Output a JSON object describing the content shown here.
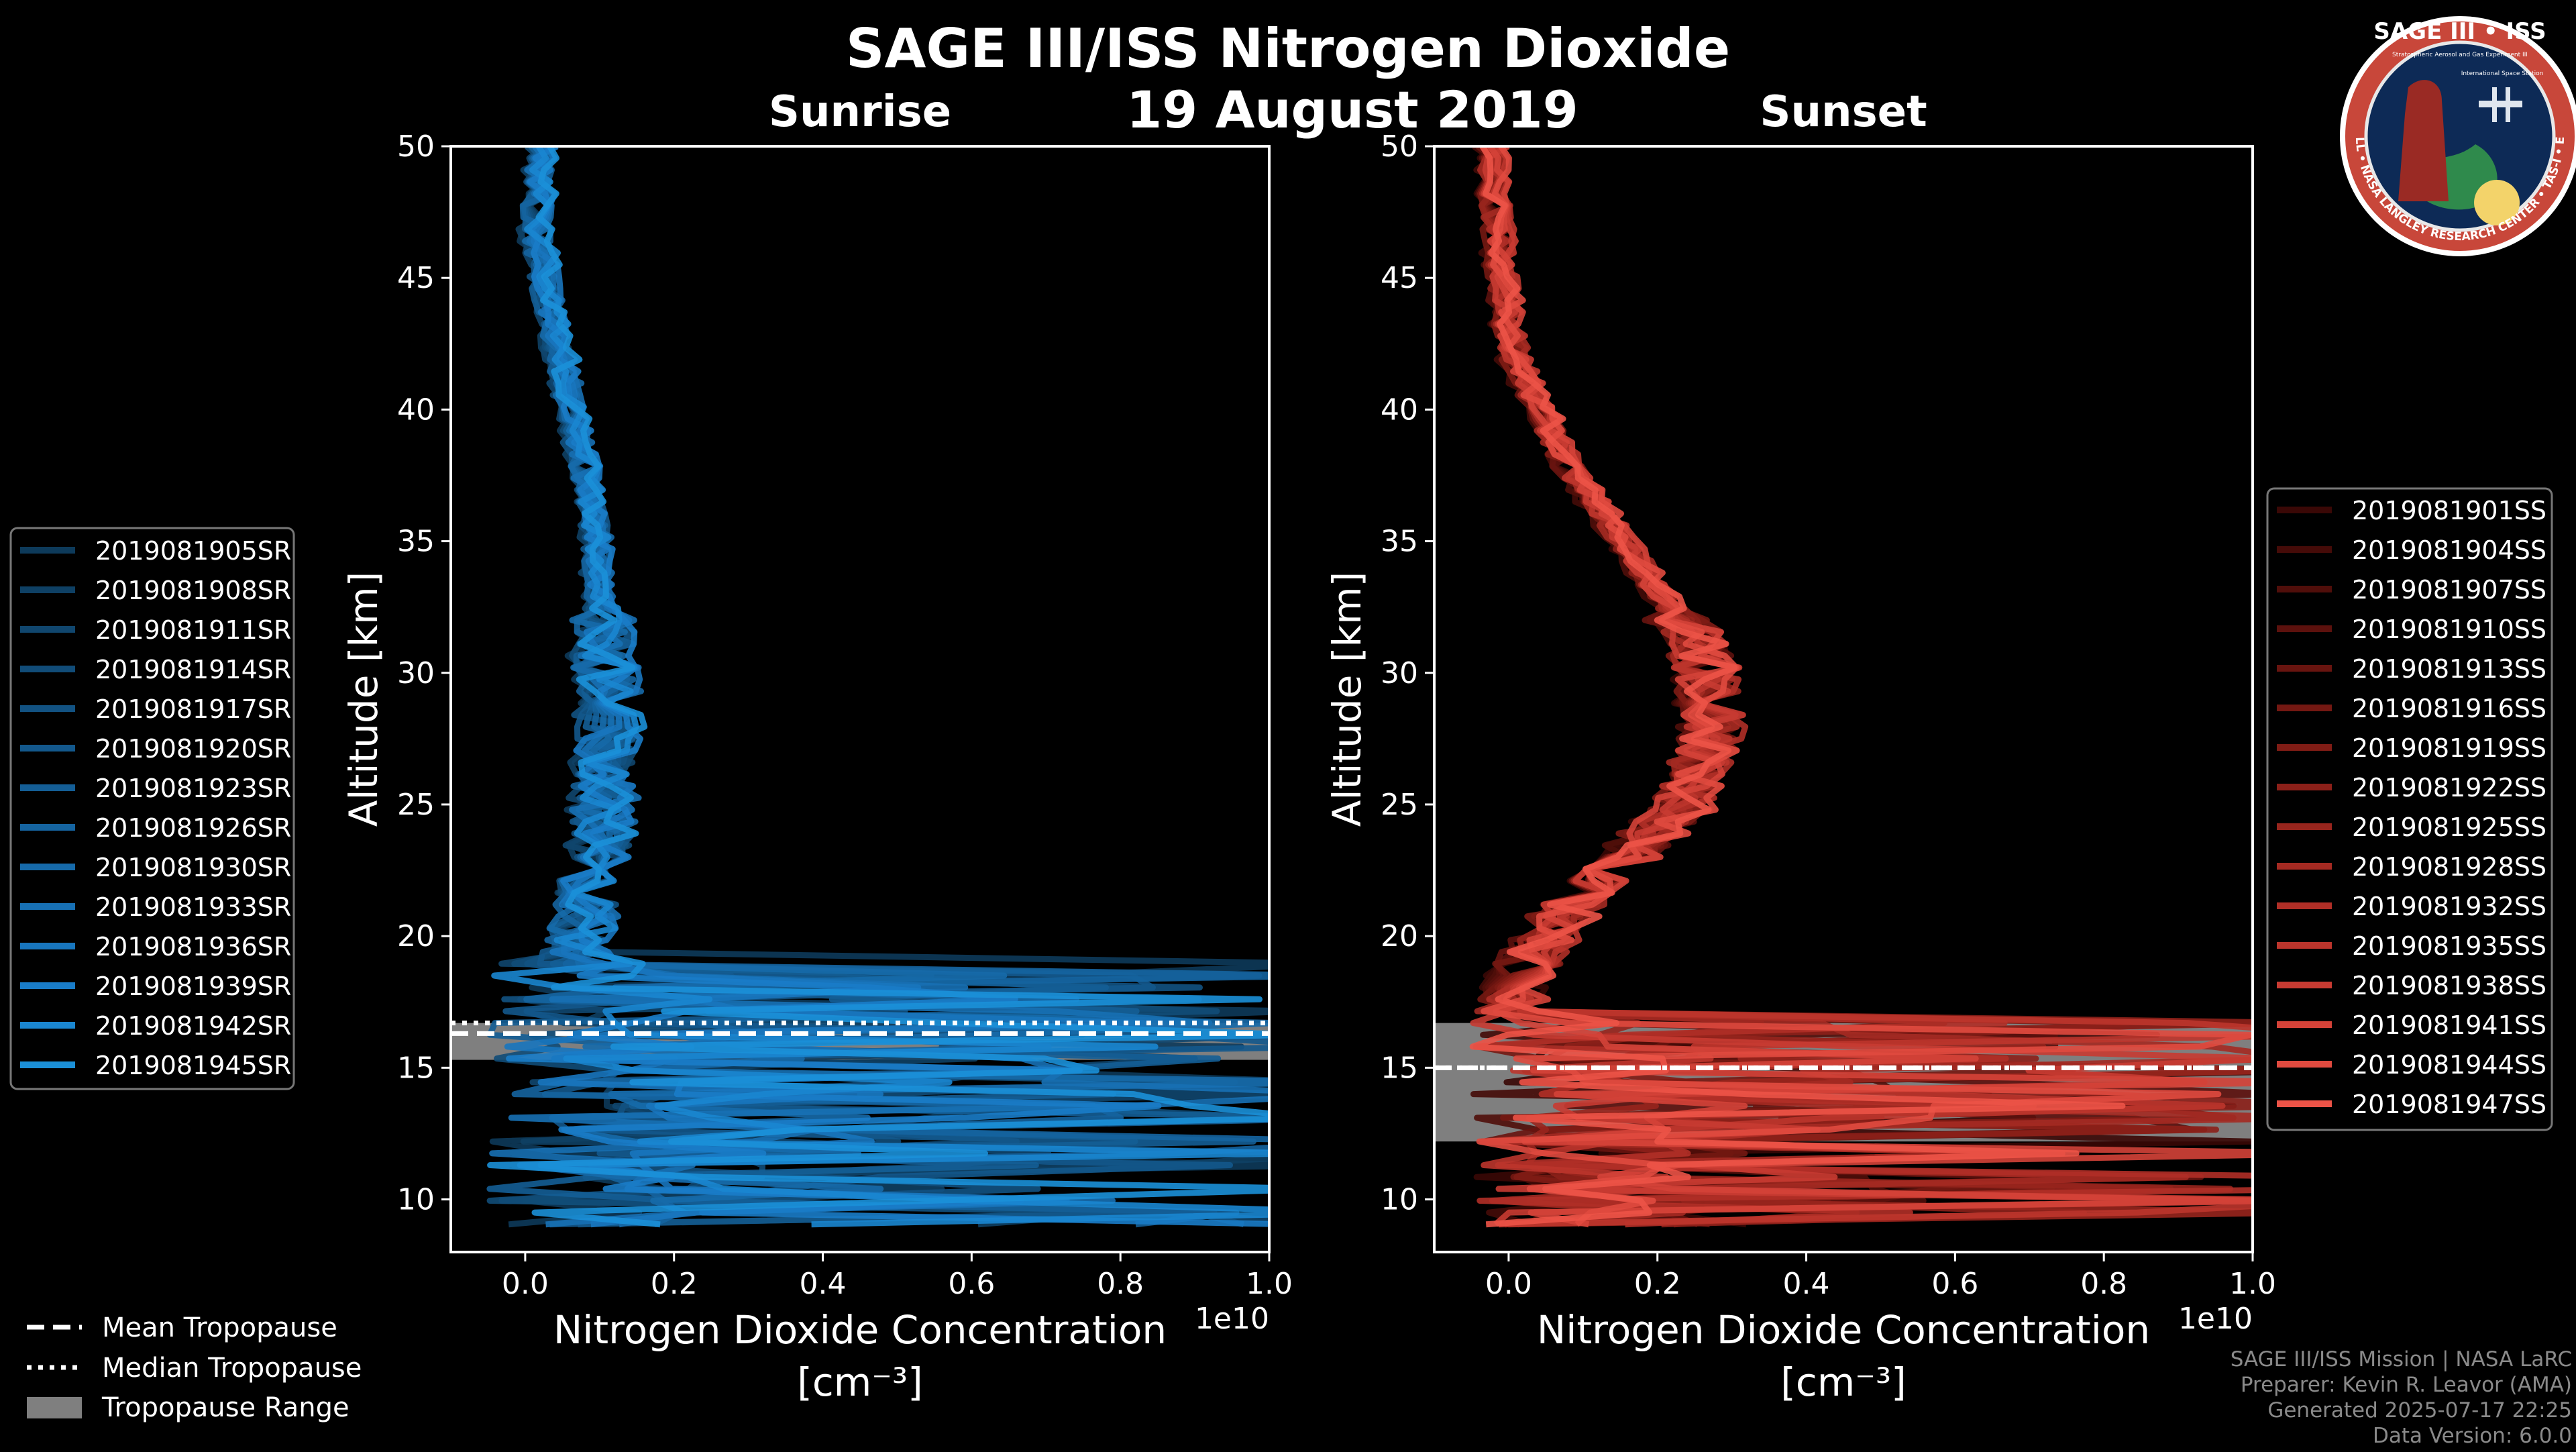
{
  "title": "SAGE III/ISS Nitrogen Dioxide",
  "date": "19 August 2019",
  "logo": {
    "title": "SAGE III • ISS",
    "subtitle": "Stratospheric Aerosol and Gas Experiment III",
    "side_text": "International Space Station",
    "ring_text": "BALL • NASA LANGLEY RESEARCH CENTER • TAS-I • ESA"
  },
  "tropopause_legend": [
    {
      "label": "Mean Tropopause",
      "style": "dashed"
    },
    {
      "label": "Median Tropopause",
      "style": "dotted"
    },
    {
      "label": "Tropopause Range",
      "style": "patch"
    }
  ],
  "footer": {
    "line1": "SAGE III/ISS Mission | NASA LaRC",
    "line2": "Preparer: Kevin R. Leavor (AMA)",
    "line3": "Generated 2025-07-17 22:25",
    "line4": "Data Version: 6.0.0"
  },
  "colors": {
    "background": "#000000",
    "sunrise_line": "#1a8fd6",
    "sunset_line": "#f0584a",
    "range_patch": "#7f7f7f"
  },
  "chart_data": [
    {
      "type": "line",
      "title": "Sunrise",
      "xlabel": "Nitrogen Dioxide Concentration",
      "xlabel_unit": "[cm⁻³]",
      "x_multiplier": "1e10",
      "ylabel": "Altitude [km]",
      "xlim": [
        -0.1,
        1.0
      ],
      "ylim": [
        8,
        50
      ],
      "xticks": [
        0.0,
        0.2,
        0.4,
        0.6,
        0.8,
        1.0
      ],
      "xtick_labels": [
        "0.0",
        "0.2",
        "0.4",
        "0.6",
        "0.8",
        "1.0"
      ],
      "yticks": [
        10,
        15,
        20,
        25,
        30,
        35,
        40,
        45,
        50
      ],
      "ytick_labels": [
        "10",
        "15",
        "20",
        "25",
        "30",
        "35",
        "40",
        "45",
        "50"
      ],
      "grid": false,
      "legend_position": "left",
      "profile_anchors": [
        [
          0.01,
          50
        ],
        [
          0.0,
          47
        ],
        [
          0.02,
          44
        ],
        [
          0.05,
          40
        ],
        [
          0.08,
          36
        ],
        [
          0.09,
          32
        ],
        [
          0.1,
          28
        ],
        [
          0.09,
          24
        ],
        [
          0.07,
          21
        ],
        [
          0.05,
          19
        ]
      ],
      "tropopause": {
        "mean": 16.3,
        "median": 16.7,
        "range": [
          15.3,
          16.7
        ]
      },
      "series": [
        {
          "name": "2019081905SR",
          "color": "#0d3a5a"
        },
        {
          "name": "2019081908SR",
          "color": "#0e4064"
        },
        {
          "name": "2019081911SR",
          "color": "#10466e"
        },
        {
          "name": "2019081914SR",
          "color": "#114c78"
        },
        {
          "name": "2019081917SR",
          "color": "#125282"
        },
        {
          "name": "2019081920SR",
          "color": "#13588c"
        },
        {
          "name": "2019081923SR",
          "color": "#145e96"
        },
        {
          "name": "2019081926SR",
          "color": "#1564a0"
        },
        {
          "name": "2019081930SR",
          "color": "#166aaa"
        },
        {
          "name": "2019081933SR",
          "color": "#1770b4"
        },
        {
          "name": "2019081936SR",
          "color": "#1876be"
        },
        {
          "name": "2019081939SR",
          "color": "#197cc8"
        },
        {
          "name": "2019081942SR",
          "color": "#1a86d0"
        },
        {
          "name": "2019081945SR",
          "color": "#1b90d8"
        }
      ]
    },
    {
      "type": "line",
      "title": "Sunset",
      "xlabel": "Nitrogen Dioxide Concentration",
      "xlabel_unit": "[cm⁻³]",
      "x_multiplier": "1e10",
      "ylabel": "Altitude [km]",
      "xlim": [
        -0.1,
        1.0
      ],
      "ylim": [
        8,
        50
      ],
      "xticks": [
        0.0,
        0.2,
        0.4,
        0.6,
        0.8,
        1.0
      ],
      "xtick_labels": [
        "0.0",
        "0.2",
        "0.4",
        "0.6",
        "0.8",
        "1.0"
      ],
      "yticks": [
        10,
        15,
        20,
        25,
        30,
        35,
        40,
        45,
        50
      ],
      "ytick_labels": [
        "10",
        "15",
        "20",
        "25",
        "30",
        "35",
        "40",
        "45",
        "50"
      ],
      "grid": false,
      "legend_position": "right",
      "profile_anchors": [
        [
          0.0,
          50
        ],
        [
          0.01,
          46
        ],
        [
          0.03,
          42
        ],
        [
          0.1,
          38
        ],
        [
          0.2,
          34
        ],
        [
          0.28,
          31
        ],
        [
          0.3,
          28
        ],
        [
          0.26,
          25
        ],
        [
          0.18,
          23
        ],
        [
          0.1,
          21
        ],
        [
          0.05,
          19
        ],
        [
          0.02,
          17
        ]
      ],
      "tropopause": {
        "mean": 15.0,
        "median": 15.0,
        "range": [
          12.2,
          16.7
        ]
      },
      "series": [
        {
          "name": "2019081901SS",
          "color": "#3a0806"
        },
        {
          "name": "2019081904SS",
          "color": "#450b08"
        },
        {
          "name": "2019081907SS",
          "color": "#500e0a"
        },
        {
          "name": "2019081910SS",
          "color": "#5c110d"
        },
        {
          "name": "2019081913SS",
          "color": "#68140f"
        },
        {
          "name": "2019081916SS",
          "color": "#741812"
        },
        {
          "name": "2019081919SS",
          "color": "#801c15"
        },
        {
          "name": "2019081922SS",
          "color": "#8c2019"
        },
        {
          "name": "2019081925SS",
          "color": "#98251d"
        },
        {
          "name": "2019081928SS",
          "color": "#a42a22"
        },
        {
          "name": "2019081932SS",
          "color": "#b02f27"
        },
        {
          "name": "2019081935SS",
          "color": "#bc352c"
        },
        {
          "name": "2019081938SS",
          "color": "#c83b32"
        },
        {
          "name": "2019081941SS",
          "color": "#d44238"
        },
        {
          "name": "2019081944SS",
          "color": "#e04a3f"
        },
        {
          "name": "2019081947SS",
          "color": "#ec5347"
        }
      ]
    }
  ]
}
